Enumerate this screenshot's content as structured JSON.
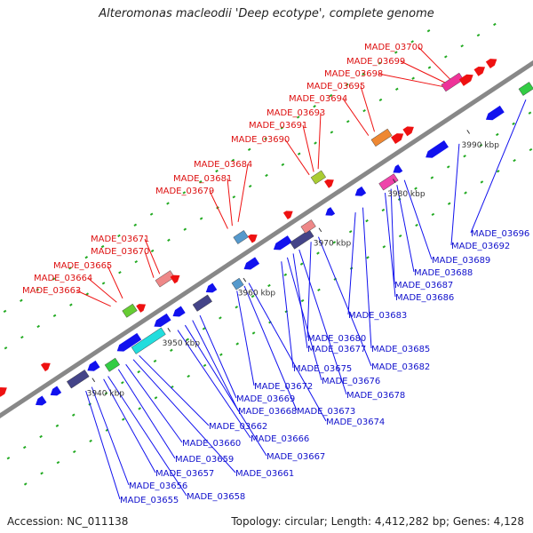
{
  "header": {
    "title": "Alteromonas macleodii 'Deep ecotype', complete genome"
  },
  "footer": {
    "accession": "Accession: NC_011138",
    "summary": "Topology: circular; Length: 4,412,282 bp; Genes: 4,128"
  },
  "colors": {
    "forward": "#ee1111",
    "reverse": "#1111ee",
    "backbone": "#888888",
    "ticks": "#22aa22"
  },
  "ticks": [
    "3940 kbp",
    "3950 kbp",
    "3960 kbp",
    "3970 kbp",
    "3980 kbp",
    "3990 kbp"
  ],
  "forward_labels": [
    "MADE_03663",
    "MADE_03664",
    "MADE_03665",
    "MADE_03670",
    "MADE_03671",
    "MADE_03679",
    "MADE_03681",
    "MADE_03684",
    "MADE_03690",
    "MADE_03691",
    "MADE_03693",
    "MADE_03694",
    "MADE_03695",
    "MADE_03698",
    "MADE_03699",
    "MADE_03700"
  ],
  "reverse_labels": [
    "MADE_03655",
    "MADE_03656",
    "MADE_03657",
    "MADE_03658",
    "MADE_03659",
    "MADE_03660",
    "MADE_03661",
    "MADE_03662",
    "MADE_03666",
    "MADE_03667",
    "MADE_03668",
    "MADE_03669",
    "MADE_03672",
    "MADE_03673",
    "MADE_03674",
    "MADE_03675",
    "MADE_03676",
    "MADE_03677",
    "MADE_03678",
    "MADE_03680",
    "MADE_03682",
    "MADE_03683",
    "MADE_03685",
    "MADE_03686",
    "MADE_03687",
    "MADE_03688",
    "MADE_03689",
    "MADE_03692",
    "MADE_03696"
  ]
}
